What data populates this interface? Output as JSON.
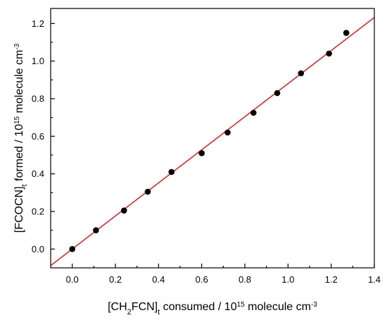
{
  "chart_data": {
    "type": "scatter",
    "title": "",
    "xlabel": {
      "parts": [
        {
          "t": "[CH",
          "s": "n"
        },
        {
          "t": "2",
          "s": "sub"
        },
        {
          "t": "FCN]",
          "s": "n"
        },
        {
          "t": "t",
          "s": "sub"
        },
        {
          "t": " consumed / 10",
          "s": "n"
        },
        {
          "t": "15",
          "s": "sup"
        },
        {
          "t": " molecule cm",
          "s": "n"
        },
        {
          "t": "-3",
          "s": "sup"
        }
      ]
    },
    "ylabel": {
      "parts": [
        {
          "t": "[FCOCN]",
          "s": "n"
        },
        {
          "t": "t",
          "s": "sub"
        },
        {
          "t": " formed / 10",
          "s": "n"
        },
        {
          "t": "15",
          "s": "sup"
        },
        {
          "t": " molecule cm",
          "s": "n"
        },
        {
          "t": "-3",
          "s": "sup"
        }
      ]
    },
    "xlim": [
      -0.1,
      1.4
    ],
    "ylim": [
      -0.1,
      1.28
    ],
    "xticks": [
      "0.0",
      "0.2",
      "0.4",
      "0.6",
      "0.8",
      "1.0",
      "1.2",
      "1.4"
    ],
    "xtick_values": [
      0.0,
      0.2,
      0.4,
      0.6,
      0.8,
      1.0,
      1.2,
      1.4
    ],
    "yticks": [
      "0.0",
      "0.2",
      "0.4",
      "0.6",
      "0.8",
      "1.0",
      "1.2"
    ],
    "ytick_values": [
      0.0,
      0.2,
      0.4,
      0.6,
      0.8,
      1.0,
      1.2
    ],
    "grid": false,
    "legend": "none",
    "series": [
      {
        "marker_color": "#000000",
        "points": [
          [
            0.0,
            0.0
          ],
          [
            0.11,
            0.1
          ],
          [
            0.24,
            0.205
          ],
          [
            0.35,
            0.305
          ],
          [
            0.46,
            0.41
          ],
          [
            0.6,
            0.51
          ],
          [
            0.72,
            0.62
          ],
          [
            0.84,
            0.725
          ],
          [
            0.95,
            0.83
          ],
          [
            1.06,
            0.935
          ],
          [
            1.19,
            1.04
          ],
          [
            1.27,
            1.15
          ]
        ]
      }
    ],
    "fit_line": {
      "color": "#e8141a",
      "points": [
        [
          -0.1,
          -0.088
        ],
        [
          1.4,
          1.232
        ]
      ]
    }
  }
}
